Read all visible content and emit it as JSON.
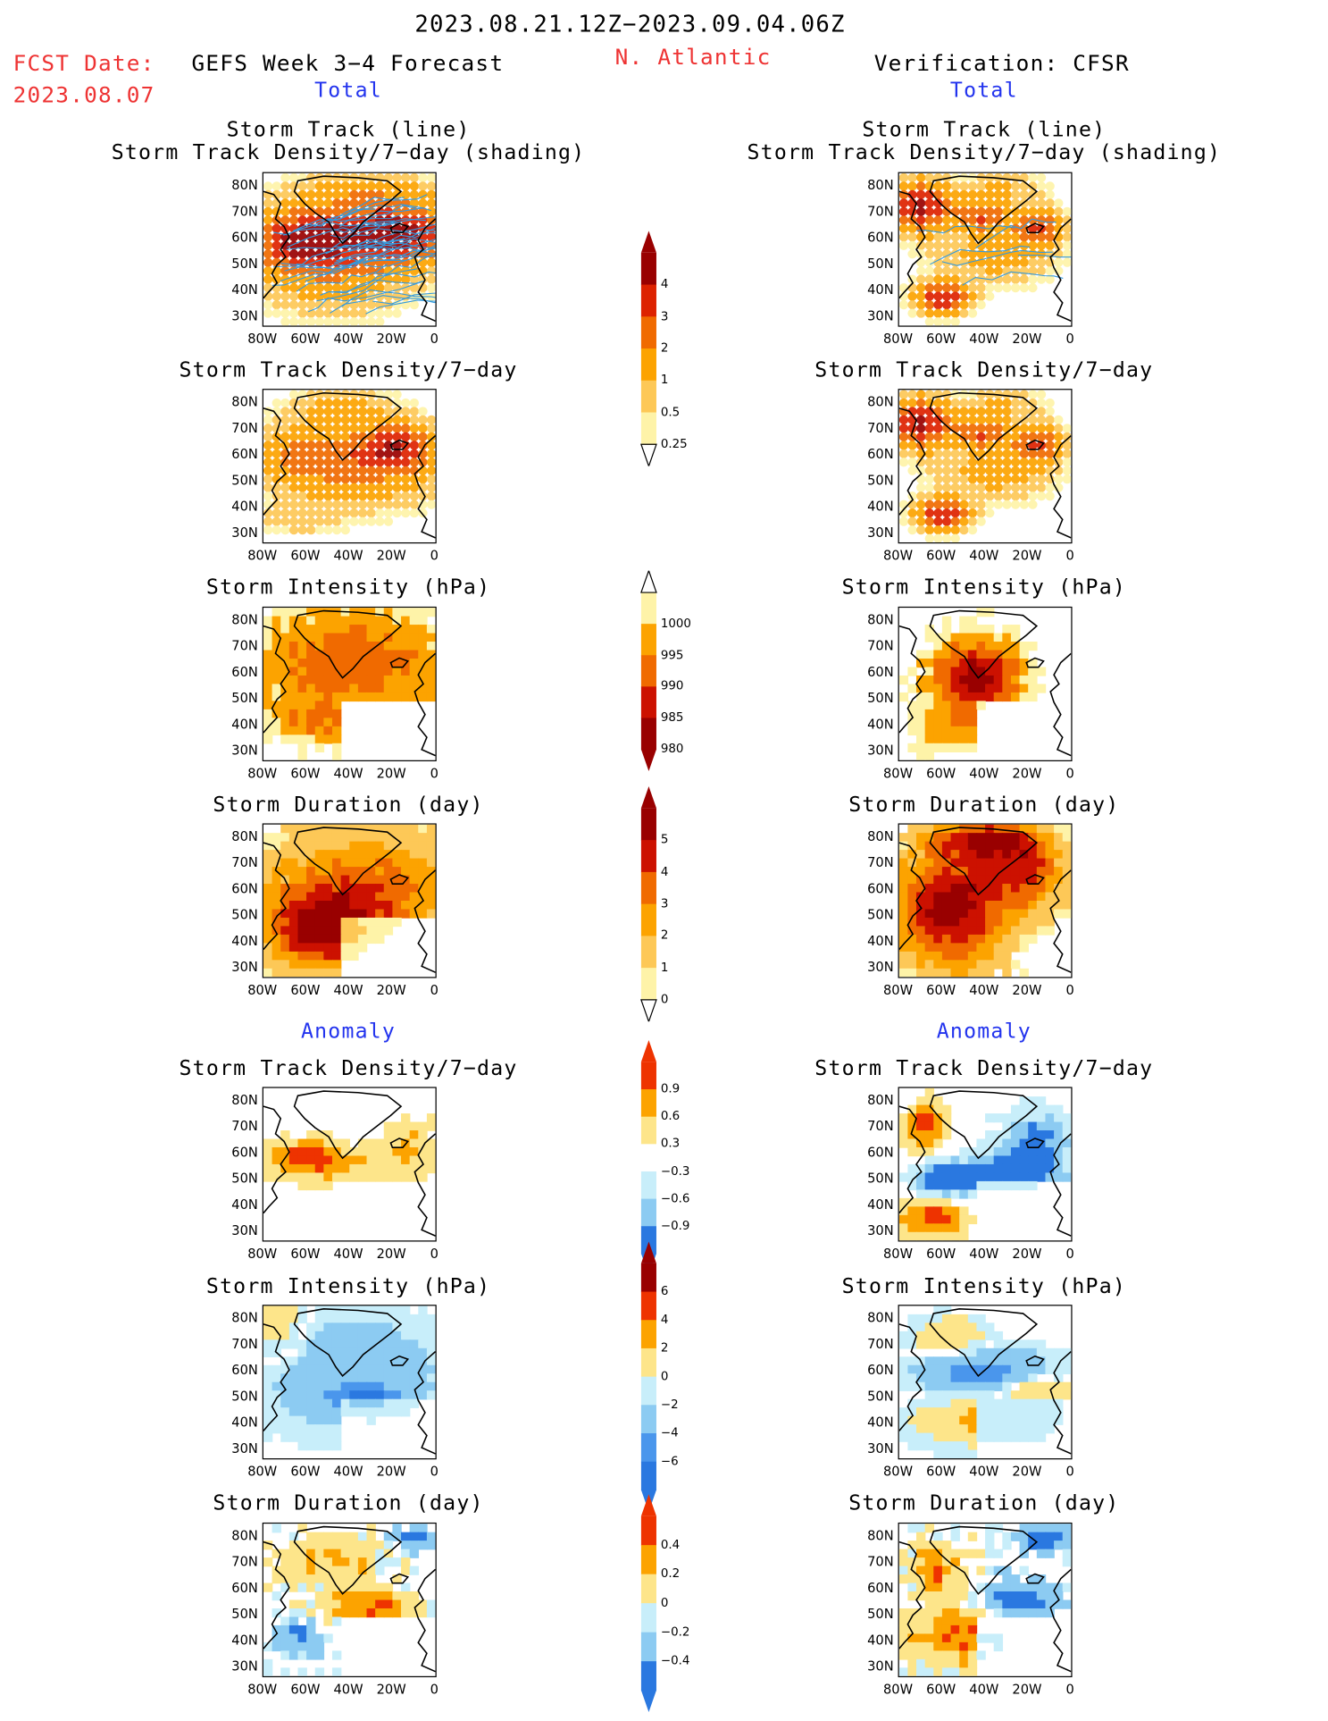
{
  "header": {
    "period": "2023.08.21.12Z−2023.09.04.06Z",
    "fcst_label": "FCST Date:",
    "fcst_date": "2023.08.07",
    "forecast_title": "GEFS Week 3−4 Forecast",
    "region": "N. Atlantic",
    "verification_title": "Verification: CFSR"
  },
  "sections": {
    "total": "Total",
    "anomaly": "Anomaly"
  },
  "panel_titles": {
    "track_line": "Storm Track (line)",
    "track_shading": "Storm Track Density/7−day (shading)",
    "density": "Storm Track Density/7−day",
    "intensity": "Storm Intensity (hPa)",
    "duration": "Storm Duration (day)"
  },
  "axes": {
    "lat_labels": [
      "80N",
      "70N",
      "60N",
      "50N",
      "40N",
      "30N"
    ],
    "lon_labels": [
      "80W",
      "60W",
      "40W",
      "20W",
      "0"
    ]
  },
  "colorbars": {
    "density": {
      "labels": [
        "4",
        "3",
        "2",
        "1",
        "0.5",
        "0.25"
      ],
      "colors": [
        "#990000",
        "#dd2200",
        "#f06a00",
        "#fca300",
        "#fdc857",
        "#fef3a8"
      ]
    },
    "intensity": {
      "labels": [
        "1000",
        "995",
        "990",
        "985",
        "980"
      ],
      "colors": [
        "#fef3a8",
        "#fca300",
        "#f06a00",
        "#cc1100",
        "#990000"
      ]
    },
    "duration": {
      "labels": [
        "5",
        "4",
        "3",
        "2",
        "1",
        "0"
      ],
      "colors": [
        "#990000",
        "#cc1100",
        "#f06a00",
        "#fca300",
        "#fdc857",
        "#fef3a8"
      ]
    },
    "density_anom": {
      "labels": [
        "0.9",
        "0.6",
        "0.3",
        "−0.3",
        "−0.6",
        "−0.9"
      ],
      "colors": [
        "#ee3300",
        "#fca300",
        "#fde58a",
        "#ffffff",
        "#c8eefa",
        "#8ccbf2",
        "#2a78e0"
      ]
    },
    "intensity_anom": {
      "labels": [
        "6",
        "4",
        "2",
        "0",
        "−2",
        "−4",
        "−6"
      ],
      "colors": [
        "#990000",
        "#ee3300",
        "#fca300",
        "#fde58a",
        "#c8eefa",
        "#8ccbf2",
        "#4a96ec",
        "#2a78e0"
      ]
    },
    "duration_anom": {
      "labels": [
        "0.4",
        "0.2",
        "0",
        "−0.2",
        "−0.4"
      ],
      "colors": [
        "#ee3300",
        "#fca300",
        "#fde58a",
        "#c8eefa",
        "#8ccbf2",
        "#2a78e0"
      ]
    }
  },
  "colors": {
    "title_red": "#ee3333",
    "section_blue": "#2233ee",
    "track_line": "#3399dd"
  }
}
